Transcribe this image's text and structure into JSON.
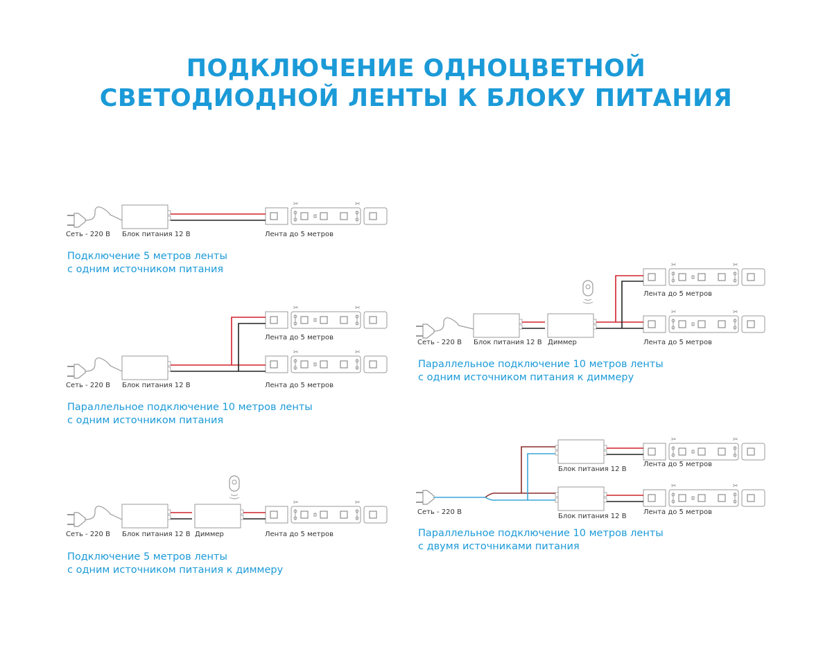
{
  "title": {
    "line1": "ПОДКЛЮЧЕНИЕ ОДНОЦВЕТНОЙ",
    "line2": "СВЕТОДИОДНОЙ ЛЕНТЫ К БЛОКУ ПИТАНИЯ"
  },
  "colors": {
    "accent": "#1b9ad8",
    "wire_positive": "#d0202a",
    "wire_negative": "#222222",
    "wire_neutral_ac": "#3aa6d8",
    "wire_live_ac": "#8b2a2a",
    "outline": "#999999"
  },
  "labels": {
    "mains": "Сеть - 220 В",
    "psu": "Блок питания 12 В",
    "dimmer": "Диммер",
    "strip": "Лента до 5 метров"
  },
  "diagrams": [
    {
      "caption": [
        "Подключение 5 метров ленты",
        "с одним источником питания"
      ]
    },
    {
      "caption": [
        "Параллельное подключение 10 метров ленты",
        "с одним источником питания"
      ]
    },
    {
      "caption": [
        "Подключение 5 метров ленты",
        "с одним источником питания к диммеру"
      ]
    },
    {
      "caption": [
        "Параллельное подключение 10 метров ленты",
        "с одним источником питания к диммеру"
      ]
    },
    {
      "caption": [
        "Параллельное подключение 10 метров ленты",
        "с двумя источниками питания"
      ]
    }
  ]
}
